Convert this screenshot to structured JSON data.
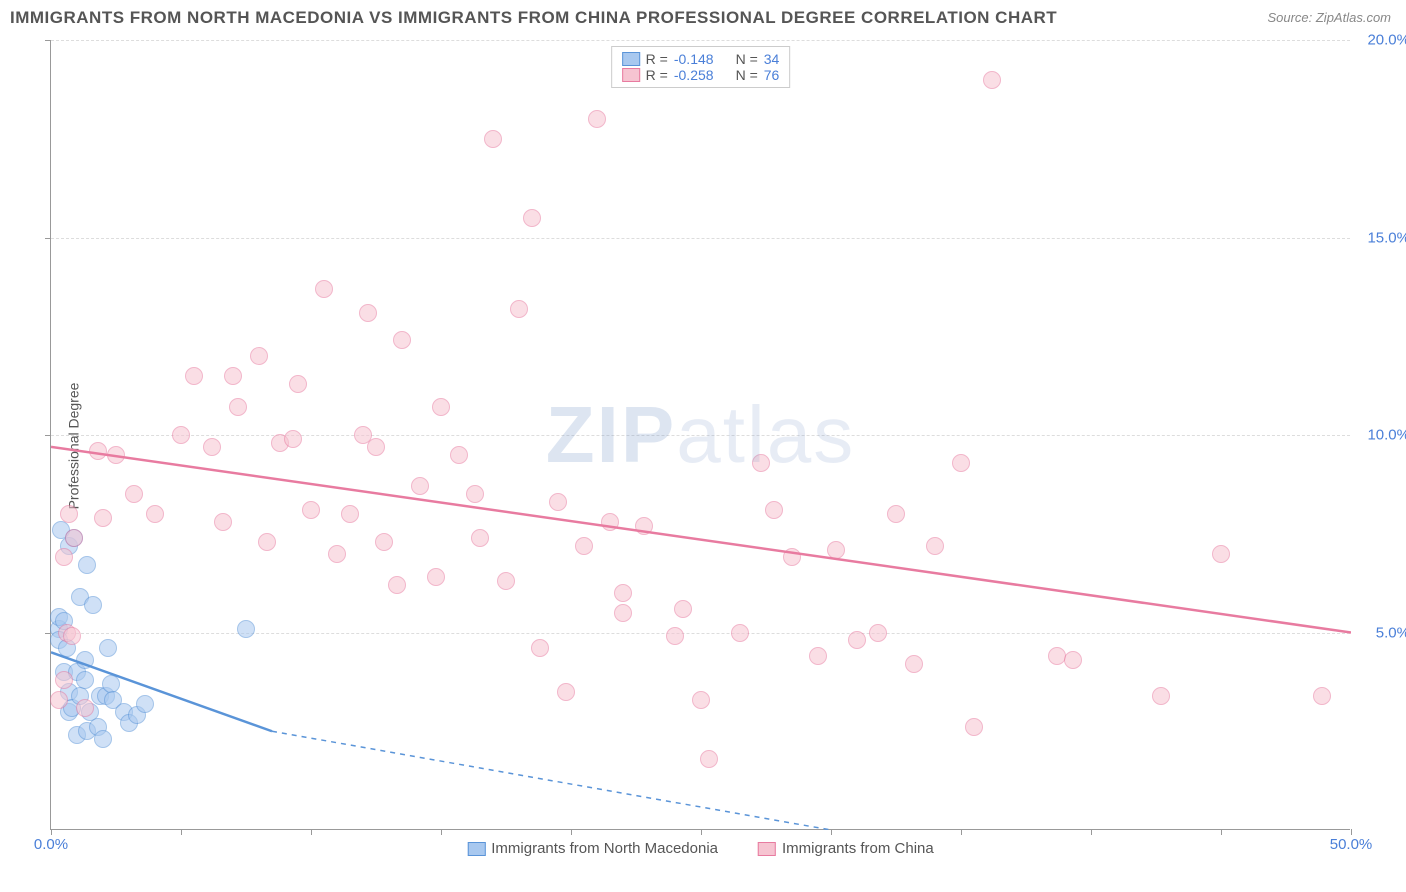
{
  "title": "IMMIGRANTS FROM NORTH MACEDONIA VS IMMIGRANTS FROM CHINA PROFESSIONAL DEGREE CORRELATION CHART",
  "source": "Source: ZipAtlas.com",
  "ylabel": "Professional Degree",
  "watermark_bold": "ZIP",
  "watermark_light": "atlas",
  "chart": {
    "type": "scatter",
    "xlim": [
      0,
      50
    ],
    "ylim": [
      0,
      20
    ],
    "x_ticks": [
      0,
      10,
      20,
      30,
      40,
      50
    ],
    "x_tick_labels": [
      "0.0%",
      "",
      "",
      "",
      "",
      "50.0%"
    ],
    "y_ticks": [
      5,
      10,
      15,
      20
    ],
    "y_tick_labels": [
      "5.0%",
      "10.0%",
      "15.0%",
      "20.0%"
    ],
    "minor_x_ticks": [
      5,
      15,
      25,
      35,
      45
    ],
    "grid_color": "#dddddd",
    "background_color": "#ffffff",
    "point_radius": 9,
    "point_opacity": 0.55,
    "series": [
      {
        "name": "Immigrants from North Macedonia",
        "color_fill": "#a8c8ef",
        "color_stroke": "#5a94d8",
        "R": "-0.148",
        "N": "34",
        "trend": {
          "x1": 0,
          "y1": 4.5,
          "x2": 8.5,
          "y2": 2.5,
          "dash_to_x": 30,
          "dash_to_y": 0
        },
        "points": [
          [
            0.3,
            5.1
          ],
          [
            0.3,
            5.4
          ],
          [
            0.3,
            4.8
          ],
          [
            0.4,
            7.6
          ],
          [
            0.5,
            5.3
          ],
          [
            0.5,
            4.0
          ],
          [
            0.6,
            4.6
          ],
          [
            0.7,
            3.0
          ],
          [
            0.7,
            3.5
          ],
          [
            0.7,
            7.2
          ],
          [
            0.8,
            3.1
          ],
          [
            0.9,
            7.4
          ],
          [
            1.0,
            2.4
          ],
          [
            1.0,
            4.0
          ],
          [
            1.1,
            3.4
          ],
          [
            1.1,
            5.9
          ],
          [
            1.3,
            4.3
          ],
          [
            1.3,
            3.8
          ],
          [
            1.4,
            6.7
          ],
          [
            1.4,
            2.5
          ],
          [
            1.5,
            3.0
          ],
          [
            1.6,
            5.7
          ],
          [
            1.8,
            2.6
          ],
          [
            1.9,
            3.4
          ],
          [
            2.0,
            2.3
          ],
          [
            2.1,
            3.4
          ],
          [
            2.2,
            4.6
          ],
          [
            2.3,
            3.7
          ],
          [
            2.4,
            3.3
          ],
          [
            2.8,
            3.0
          ],
          [
            3.0,
            2.7
          ],
          [
            3.3,
            2.9
          ],
          [
            3.6,
            3.2
          ],
          [
            7.5,
            5.1
          ]
        ]
      },
      {
        "name": "Immigrants from China",
        "color_fill": "#f6c4d1",
        "color_stroke": "#e87ba0",
        "R": "-0.258",
        "N": "76",
        "trend": {
          "x1": 0,
          "y1": 9.7,
          "x2": 50,
          "y2": 5.0
        },
        "points": [
          [
            0.3,
            3.3
          ],
          [
            0.5,
            3.8
          ],
          [
            0.5,
            6.9
          ],
          [
            0.6,
            5.0
          ],
          [
            0.7,
            8.0
          ],
          [
            0.8,
            4.9
          ],
          [
            0.9,
            7.4
          ],
          [
            1.3,
            3.1
          ],
          [
            1.8,
            9.6
          ],
          [
            2.0,
            7.9
          ],
          [
            2.5,
            9.5
          ],
          [
            3.2,
            8.5
          ],
          [
            4.0,
            8.0
          ],
          [
            5.0,
            10.0
          ],
          [
            5.5,
            11.5
          ],
          [
            6.2,
            9.7
          ],
          [
            6.6,
            7.8
          ],
          [
            7.0,
            11.5
          ],
          [
            7.2,
            10.7
          ],
          [
            8.0,
            12.0
          ],
          [
            8.3,
            7.3
          ],
          [
            8.8,
            9.8
          ],
          [
            9.3,
            9.9
          ],
          [
            9.5,
            11.3
          ],
          [
            10.0,
            8.1
          ],
          [
            10.5,
            13.7
          ],
          [
            11.0,
            7.0
          ],
          [
            11.5,
            8.0
          ],
          [
            12.0,
            10.0
          ],
          [
            12.2,
            13.1
          ],
          [
            12.5,
            9.7
          ],
          [
            12.8,
            7.3
          ],
          [
            13.3,
            6.2
          ],
          [
            13.5,
            12.4
          ],
          [
            14.2,
            8.7
          ],
          [
            14.8,
            6.4
          ],
          [
            15.0,
            10.7
          ],
          [
            15.7,
            9.5
          ],
          [
            16.3,
            8.5
          ],
          [
            16.5,
            7.4
          ],
          [
            17.0,
            17.5
          ],
          [
            17.5,
            6.3
          ],
          [
            18.0,
            13.2
          ],
          [
            18.5,
            15.5
          ],
          [
            18.8,
            4.6
          ],
          [
            19.5,
            8.3
          ],
          [
            19.8,
            3.5
          ],
          [
            20.5,
            7.2
          ],
          [
            21.0,
            18.0
          ],
          [
            21.5,
            7.8
          ],
          [
            22.0,
            6.0
          ],
          [
            22.0,
            5.5
          ],
          [
            22.8,
            7.7
          ],
          [
            24.0,
            4.9
          ],
          [
            24.3,
            5.6
          ],
          [
            25.0,
            3.3
          ],
          [
            25.3,
            1.8
          ],
          [
            26.5,
            5.0
          ],
          [
            27.3,
            9.3
          ],
          [
            27.8,
            8.1
          ],
          [
            28.5,
            6.9
          ],
          [
            29.5,
            4.4
          ],
          [
            30.2,
            7.1
          ],
          [
            31.0,
            4.8
          ],
          [
            31.8,
            5.0
          ],
          [
            32.5,
            8.0
          ],
          [
            33.2,
            4.2
          ],
          [
            34.0,
            7.2
          ],
          [
            35.0,
            9.3
          ],
          [
            35.5,
            2.6
          ],
          [
            36.2,
            19.0
          ],
          [
            38.7,
            4.4
          ],
          [
            39.3,
            4.3
          ],
          [
            42.7,
            3.4
          ],
          [
            45.0,
            7.0
          ],
          [
            48.9,
            3.4
          ]
        ]
      }
    ]
  },
  "legend_top": {
    "r_prefix": "R =",
    "n_prefix": "N ="
  },
  "colors": {
    "text": "#555555",
    "axis_value": "#4a7fd8",
    "border": "#999999"
  }
}
